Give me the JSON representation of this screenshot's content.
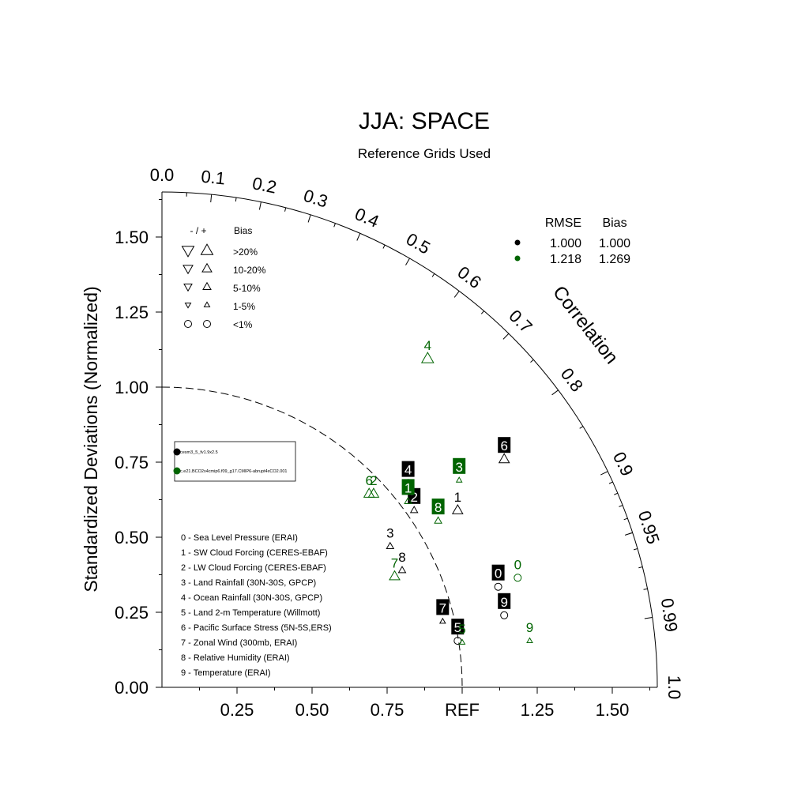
{
  "chart_data": {
    "type": "taylor-diagram",
    "title": "JJA: SPACE",
    "subtitle": "Reference Grids Used",
    "ylabel": "Standardized Deviations (Normalized)",
    "arc_label": "Correlation",
    "ref_label": "REF",
    "std_range": [
      0,
      1.65
    ],
    "y_ticks": [
      "0.00",
      "0.25",
      "0.50",
      "0.75",
      "1.00",
      "1.25",
      "1.50"
    ],
    "x_ticks": [
      "0.25",
      "0.50",
      "0.75",
      "REF",
      "1.25",
      "1.50"
    ],
    "correlation_ticks": [
      "0.0",
      "0.1",
      "0.2",
      "0.3",
      "0.4",
      "0.5",
      "0.6",
      "0.7",
      "0.8",
      "0.9",
      "0.95",
      "0.99",
      "1.0"
    ],
    "bias_legend": {
      "header_sign": "- / +",
      "header_bias": "Bias",
      "rows": [
        ">20%",
        "10-20%",
        "5-10%",
        "1-5%",
        "<1%"
      ]
    },
    "stats_table": {
      "headers": [
        "RMSE",
        "Bias"
      ],
      "rows": [
        {
          "color": "#000000",
          "rmse": "1.000",
          "bias": "1.000"
        },
        {
          "color": "#006400",
          "rmse": "1.218",
          "bias": "1.269"
        }
      ]
    },
    "series": [
      {
        "name": "cesm3_5_fv1.9x2.5",
        "color": "#000000"
      },
      {
        "name": "c.e21.BCO2x4cmip6.f09_g17.CMIP6-abrupt4xCO2.001",
        "color": "#006400"
      }
    ],
    "variables": [
      "0 - Sea Level Pressure (ERAI)",
      "1 - SW Cloud Forcing (CERES-EBAF)",
      "2 - LW Cloud Forcing (CERES-EBAF)",
      "3 - Land Rainfall (30N-30S, GPCP)",
      "4 - Ocean Rainfall (30N-30S, GPCP)",
      "5 - Land 2-m Temperature (Willmott)",
      "6 - Pacific Surface Stress (5N-5S,ERS)",
      "7 - Zonal Wind (300mb, ERAI)",
      "8 - Relative Humidity (ERAI)",
      "9 - Temperature (ERAI)"
    ],
    "points": [
      {
        "series": 0,
        "label": "0",
        "x": 1.12,
        "y": 0.335,
        "marker": "circle",
        "boxed": true
      },
      {
        "series": 0,
        "label": "1",
        "x": 0.985,
        "y": 0.59,
        "marker": "up",
        "size": "m",
        "boxed": false
      },
      {
        "series": 0,
        "label": "2",
        "x": 0.84,
        "y": 0.59,
        "marker": "up",
        "size": "s",
        "boxed": true
      },
      {
        "series": 0,
        "label": "3",
        "x": 0.76,
        "y": 0.47,
        "marker": "up",
        "size": "s",
        "boxed": false
      },
      {
        "series": 0,
        "label": "4",
        "x": 0.82,
        "y": 0.68,
        "marker": "up",
        "size": "s",
        "boxed": true
      },
      {
        "series": 0,
        "label": "5",
        "x": 0.985,
        "y": 0.155,
        "marker": "circle",
        "boxed": true
      },
      {
        "series": 0,
        "label": "6",
        "x": 1.14,
        "y": 0.76,
        "marker": "up",
        "size": "m",
        "boxed": true
      },
      {
        "series": 0,
        "label": "7",
        "x": 0.935,
        "y": 0.22,
        "marker": "up",
        "size": "xs",
        "boxed": true
      },
      {
        "series": 0,
        "label": "8",
        "x": 0.8,
        "y": 0.39,
        "marker": "up",
        "size": "s",
        "boxed": false
      },
      {
        "series": 0,
        "label": "9",
        "x": 1.14,
        "y": 0.24,
        "marker": "circle",
        "boxed": true
      },
      {
        "series": 1,
        "label": "0",
        "x": 1.185,
        "y": 0.365,
        "marker": "circle",
        "boxed": false
      },
      {
        "series": 1,
        "label": "1",
        "x": 0.82,
        "y": 0.62,
        "marker": "up",
        "size": "s",
        "boxed": true
      },
      {
        "series": 1,
        "label": "2",
        "x": 0.705,
        "y": 0.645,
        "marker": "up",
        "size": "m",
        "boxed": false
      },
      {
        "series": 1,
        "label": "3",
        "x": 0.99,
        "y": 0.69,
        "marker": "up",
        "size": "xs",
        "boxed": true
      },
      {
        "series": 1,
        "label": "4",
        "x": 0.885,
        "y": 1.095,
        "marker": "up",
        "size": "l",
        "boxed": false
      },
      {
        "series": 1,
        "label": "5",
        "x": 1.0,
        "y": 0.15,
        "marker": "up",
        "size": "xs",
        "boxed": false
      },
      {
        "series": 1,
        "label": "6",
        "x": 0.69,
        "y": 0.645,
        "marker": "up",
        "size": "m",
        "boxed": false
      },
      {
        "series": 1,
        "label": "7",
        "x": 0.775,
        "y": 0.37,
        "marker": "up",
        "size": "m",
        "boxed": false
      },
      {
        "series": 1,
        "label": "8",
        "x": 0.92,
        "y": 0.555,
        "marker": "up",
        "size": "s",
        "boxed": true
      },
      {
        "series": 1,
        "label": "9",
        "x": 1.225,
        "y": 0.155,
        "marker": "up",
        "size": "xs",
        "boxed": false
      }
    ]
  }
}
